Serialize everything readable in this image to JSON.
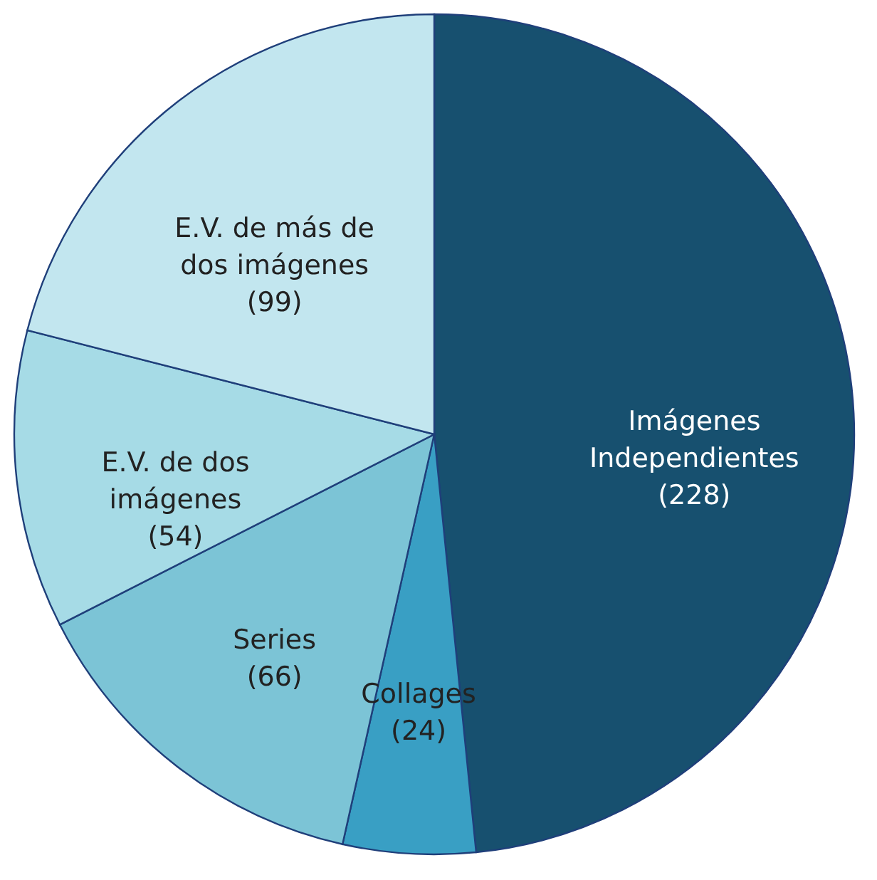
{
  "chart_data": {
    "type": "pie",
    "categories": [
      "Imágenes Independientes",
      "Collages",
      "Series",
      "E.V. de dos imágenes",
      "E.V. de más de dos imágenes"
    ],
    "values": [
      228,
      24,
      66,
      54,
      99
    ],
    "value_labels": [
      "(228)",
      "(24)",
      "(66)",
      "(54)",
      "(99)"
    ],
    "colors": [
      "#17506f",
      "#399fc4",
      "#7cc4d6",
      "#a6dbe6",
      "#c2e6ef"
    ],
    "legend": false
  }
}
